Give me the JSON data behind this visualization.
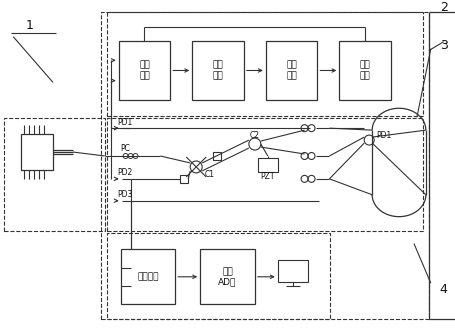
{
  "fig_width": 4.56,
  "fig_height": 3.29,
  "dpi": 100,
  "bg_color": "#ffffff",
  "lc": "#333333",
  "label1": "1",
  "label2": "2",
  "label3": "3",
  "label4": "4",
  "box_amp2_label": "两级\n放大",
  "box_lpf_label": "低通\n滤波",
  "box_diff_label": "差分\n复位",
  "box_int_label": "积分\n复位",
  "box_amp_label": "放大去噪",
  "box_ad_label": "高速\nAD卡",
  "pd1_label": "PD1",
  "pd2_label": "PD2",
  "pd3_label": "PD3",
  "pd1r_label": "PD1",
  "pc_label": "PC",
  "c1_label": "C1",
  "c2_label": "C2",
  "pzt_label": "PZT"
}
